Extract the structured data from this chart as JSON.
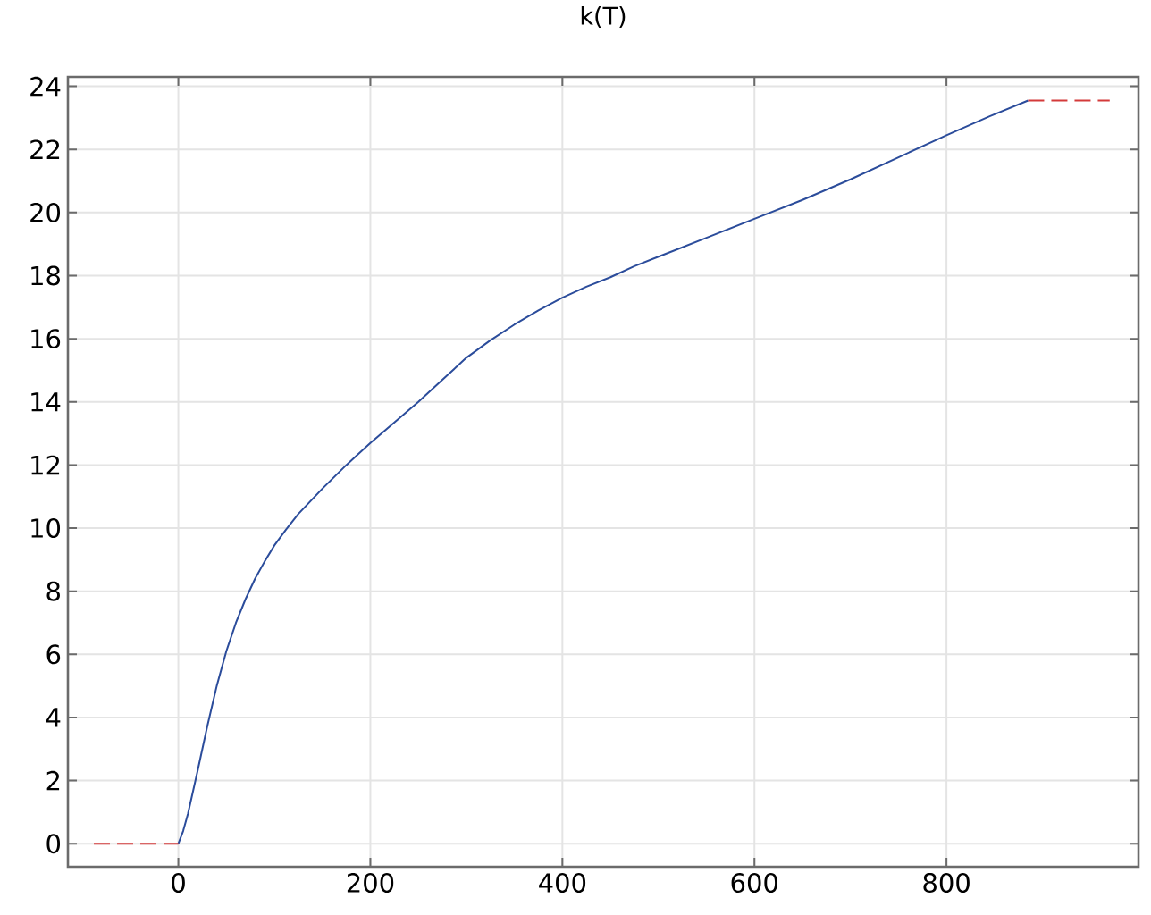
{
  "chart_data": {
    "type": "line",
    "title": "k(T)",
    "xlim": [
      -115,
      1000
    ],
    "ylim": [
      -0.73,
      24.3
    ],
    "xticks": [
      0,
      200,
      400,
      600,
      800
    ],
    "yticks": [
      0,
      2,
      4,
      6,
      8,
      10,
      12,
      14,
      16,
      18,
      20,
      22,
      24
    ],
    "grid": true,
    "line_style": "solid",
    "series": [
      {
        "color": "#2b4c9b",
        "x": [
          0,
          5,
          10,
          20,
          30,
          40,
          50,
          60,
          70,
          80,
          90,
          100,
          112,
          125,
          150,
          175,
          200,
          225,
          250,
          275,
          300,
          325,
          350,
          375,
          400,
          425,
          450,
          475,
          500,
          550,
          600,
          650,
          700,
          750,
          800,
          845,
          885
        ],
        "values": [
          0,
          0.4,
          0.95,
          2.3,
          3.7,
          5.0,
          6.1,
          7.0,
          7.75,
          8.4,
          8.95,
          9.45,
          9.95,
          10.45,
          11.25,
          12.0,
          12.7,
          13.35,
          14.0,
          14.7,
          15.4,
          15.95,
          16.45,
          16.9,
          17.3,
          17.65,
          17.95,
          18.3,
          18.6,
          19.2,
          19.8,
          20.4,
          21.05,
          21.75,
          22.45,
          23.05,
          23.55
        ]
      },
      {
        "color": "#d43a3a",
        "line_style": "dashed",
        "x": [
          -88,
          0
        ],
        "values": [
          0,
          0
        ]
      },
      {
        "color": "#d43a3a",
        "line_style": "dashed",
        "x": [
          885,
          970
        ],
        "values": [
          23.55,
          23.55
        ]
      }
    ]
  }
}
